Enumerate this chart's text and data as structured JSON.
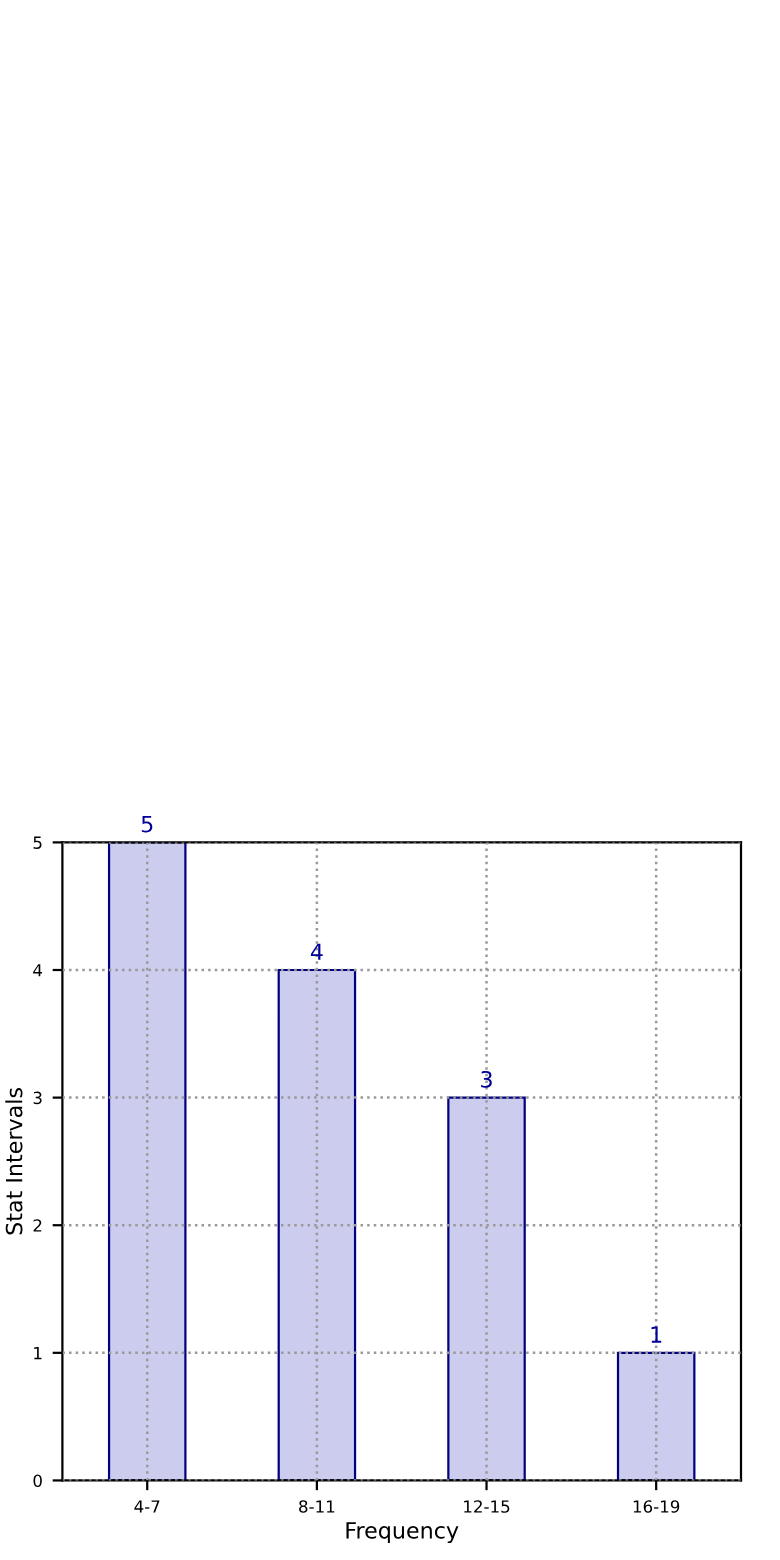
{
  "chart_data": {
    "type": "bar",
    "xlabel": "Frequency",
    "ylabel": "Stat Intervals",
    "categories": [
      "4-7",
      "8-11",
      "12-15",
      "16-19"
    ],
    "values": [
      5,
      4,
      3,
      1
    ],
    "color": "#ccccee",
    "ylim": [
      0,
      5
    ],
    "yticks": [
      0,
      1,
      2,
      3,
      4,
      5
    ],
    "grid": true,
    "data_labels": true
  }
}
